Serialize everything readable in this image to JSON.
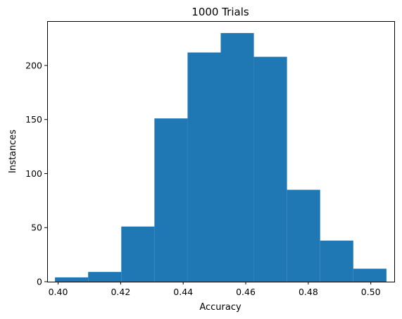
{
  "chart_data": {
    "type": "histogram",
    "title": "1000 Trials",
    "xlabel": "Accuracy",
    "ylabel": "Instances",
    "xlim": [
      0.3965,
      0.5075
    ],
    "ylim": [
      0,
      241
    ],
    "bar_color": "#1f77b4",
    "bins": [
      {
        "start": 0.399,
        "end": 0.4096,
        "count": 4
      },
      {
        "start": 0.4096,
        "end": 0.4202,
        "count": 9
      },
      {
        "start": 0.4202,
        "end": 0.4308,
        "count": 51
      },
      {
        "start": 0.4308,
        "end": 0.4414,
        "count": 151
      },
      {
        "start": 0.4414,
        "end": 0.452,
        "count": 212
      },
      {
        "start": 0.452,
        "end": 0.4626,
        "count": 230
      },
      {
        "start": 0.4626,
        "end": 0.4732,
        "count": 208
      },
      {
        "start": 0.4732,
        "end": 0.4838,
        "count": 85
      },
      {
        "start": 0.4838,
        "end": 0.4944,
        "count": 38
      },
      {
        "start": 0.4944,
        "end": 0.505,
        "count": 12
      }
    ],
    "xticks": [
      {
        "value": 0.4,
        "label": "0.40"
      },
      {
        "value": 0.42,
        "label": "0.42"
      },
      {
        "value": 0.44,
        "label": "0.44"
      },
      {
        "value": 0.46,
        "label": "0.46"
      },
      {
        "value": 0.48,
        "label": "0.48"
      },
      {
        "value": 0.5,
        "label": "0.50"
      }
    ],
    "yticks": [
      {
        "value": 0,
        "label": "0"
      },
      {
        "value": 50,
        "label": "50"
      },
      {
        "value": 100,
        "label": "100"
      },
      {
        "value": 150,
        "label": "150"
      },
      {
        "value": 200,
        "label": "200"
      }
    ]
  }
}
